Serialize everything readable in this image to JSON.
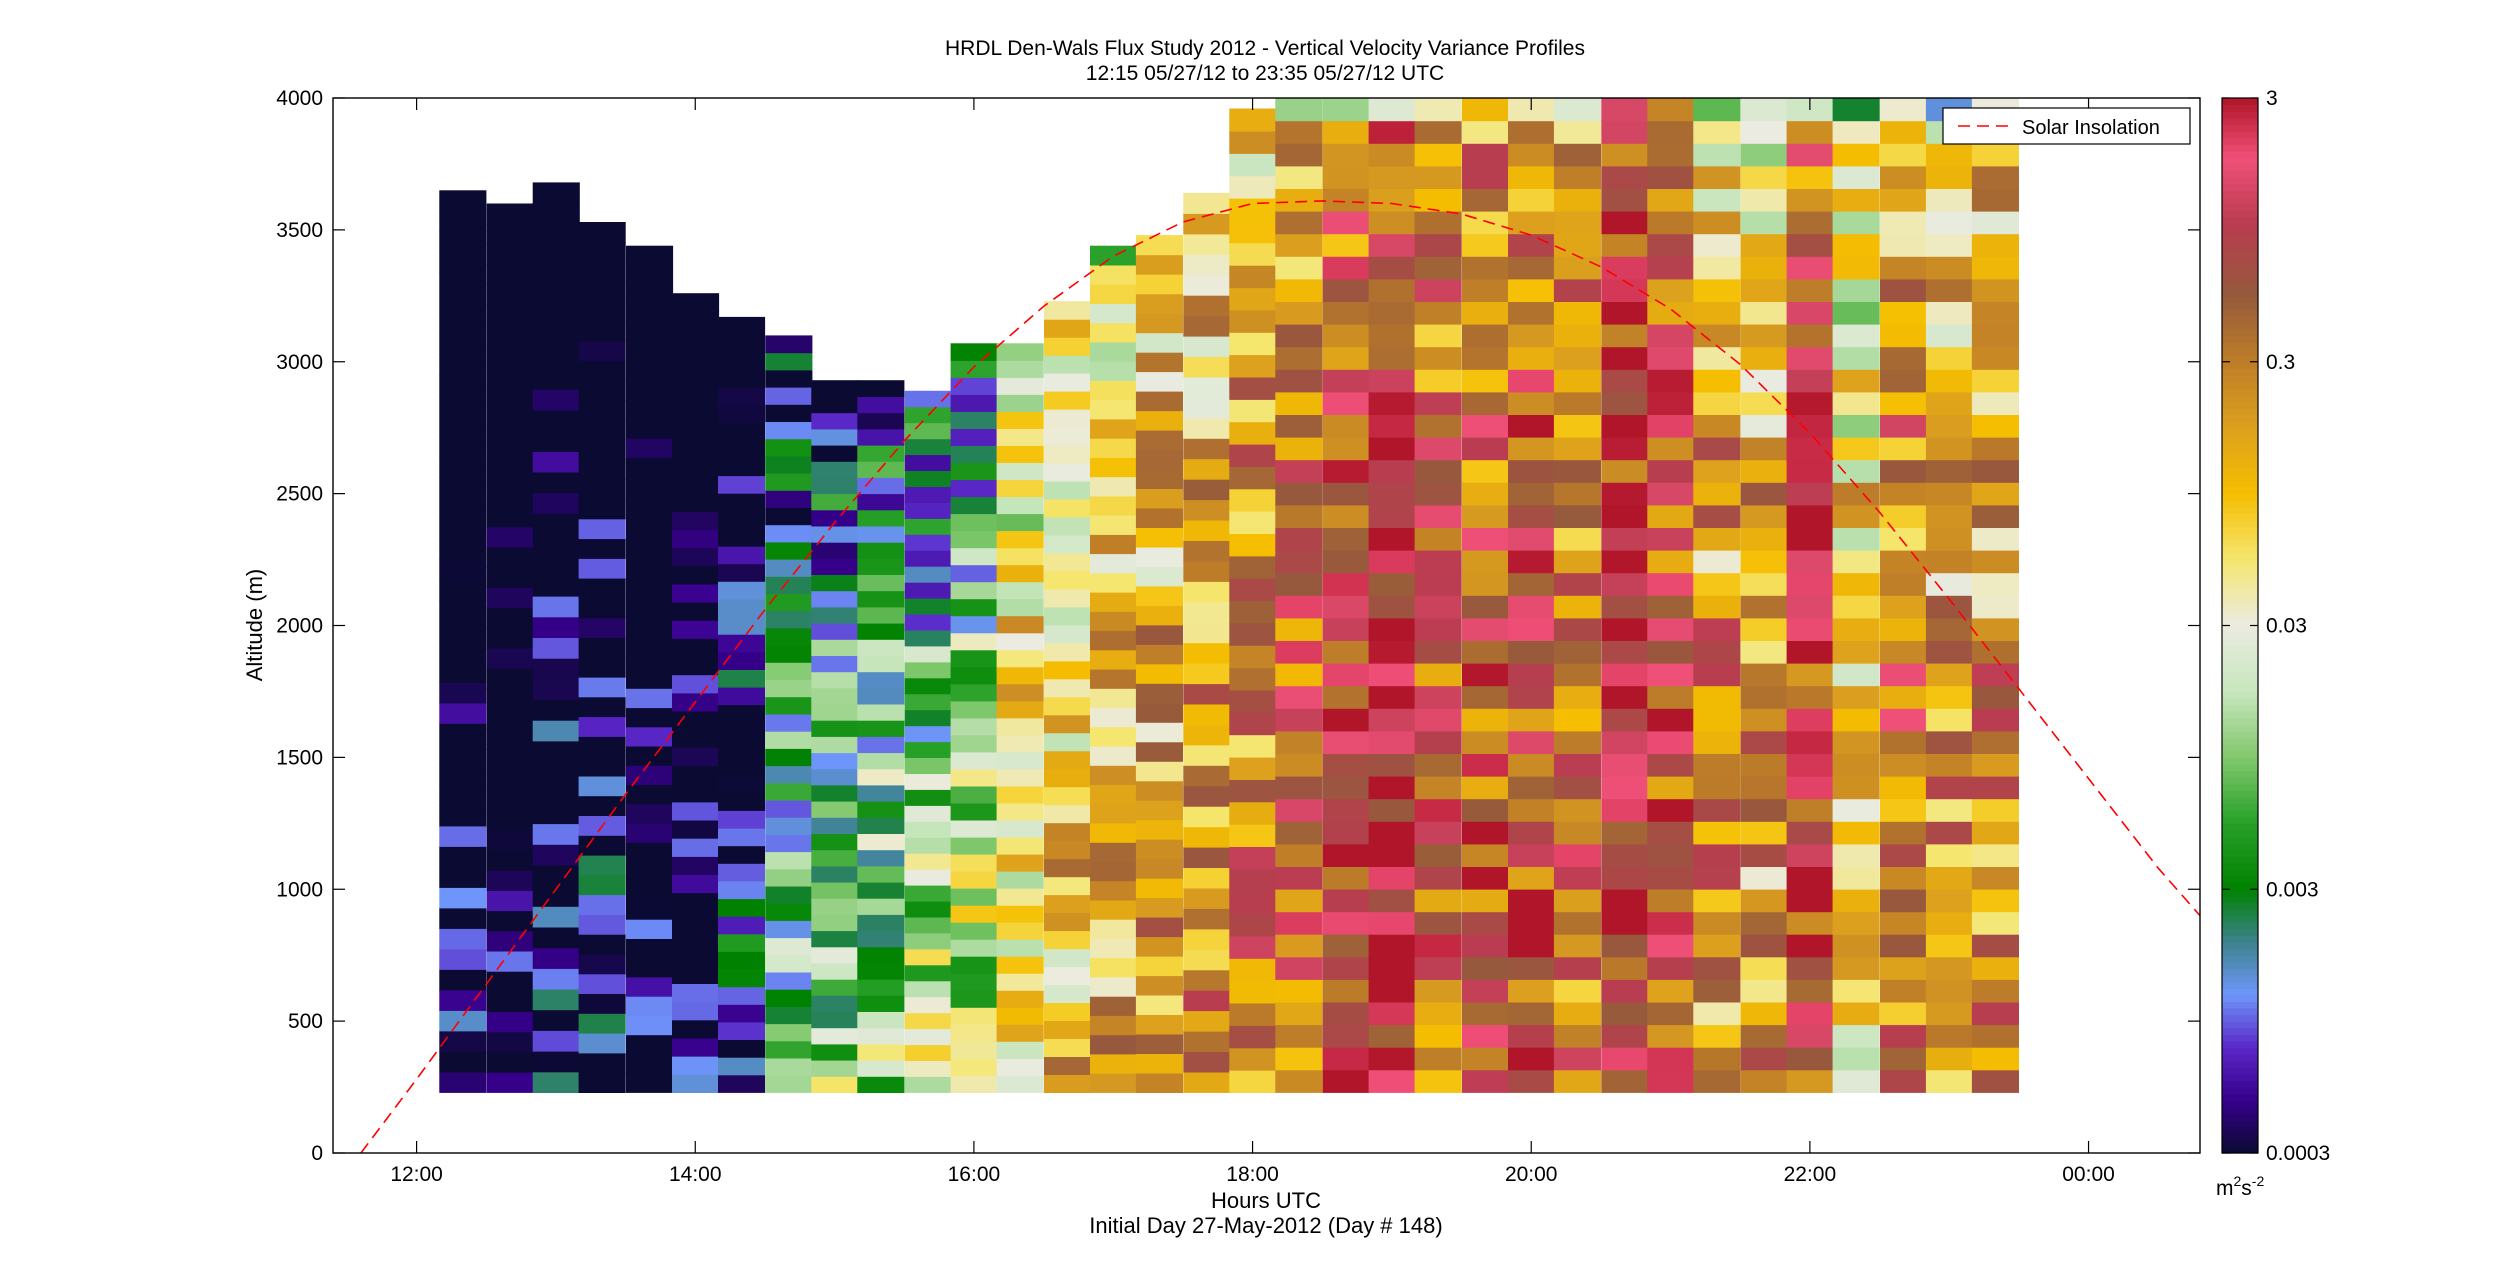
{
  "chart_data": {
    "type": "heatmap",
    "title": "HRDL Den-Wals Flux Study 2012 - Vertical Velocity Variance Profiles",
    "subtitle": "12:15 05/27/12 to 23:35 05/27/12  UTC",
    "xlabel": "Hours UTC",
    "xlabel2": "Initial Day 27-May-2012 (Day # 148)",
    "ylabel": "Altitude (m)",
    "xlim": [
      11.4,
      24.8
    ],
    "ylim": [
      0,
      4000
    ],
    "x_ticks": [
      12,
      14,
      16,
      18,
      20,
      22,
      24
    ],
    "x_tick_labels": [
      "12:00",
      "14:00",
      "16:00",
      "18:00",
      "20:00",
      "22:00",
      "00:00"
    ],
    "y_ticks": [
      0,
      500,
      1000,
      1500,
      2000,
      2500,
      3000,
      3500,
      4000
    ],
    "y_tick_labels": [
      "0",
      "500",
      "1000",
      "1500",
      "2000",
      "2500",
      "3000",
      "3500",
      "4000"
    ],
    "colorbar": {
      "scale": "log",
      "range": [
        0.0003,
        3
      ],
      "ticks": [
        0.0003,
        0.003,
        0.03,
        0.3,
        3
      ],
      "tick_labels": [
        "0.0003",
        "0.003",
        "0.03",
        "0.3",
        "3"
      ],
      "unit_base": "m",
      "unit_sup1": "2",
      "unit_mid": "s",
      "unit_sup2": "-2"
    },
    "legend": {
      "label": "Solar Insolation",
      "placement": "top-right",
      "color": "#ff0000",
      "style": "dashed"
    },
    "profile_bottom_m": 230,
    "profiles": [
      {
        "t": 12.33,
        "top": 3650,
        "level": -0.5
      },
      {
        "t": 12.67,
        "top": 3600,
        "level": -0.4
      },
      {
        "t": 13.0,
        "top": 3680,
        "level": -0.2
      },
      {
        "t": 13.33,
        "top": 3530,
        "level": -0.1
      },
      {
        "t": 13.67,
        "top": 3440,
        "level": -0.3
      },
      {
        "t": 14.0,
        "top": 3260,
        "level": -0.3
      },
      {
        "t": 14.33,
        "top": 3170,
        "level": 0.1
      },
      {
        "t": 14.67,
        "top": 3100,
        "level": 0.7
      },
      {
        "t": 15.0,
        "top": 2930,
        "level": 0.9
      },
      {
        "t": 15.33,
        "top": 2930,
        "level": 1.0
      },
      {
        "t": 15.67,
        "top": 2890,
        "level": 1.1
      },
      {
        "t": 16.0,
        "top": 3070,
        "level": 1.2
      },
      {
        "t": 16.33,
        "top": 3070,
        "level": 1.6
      },
      {
        "t": 16.67,
        "top": 3230,
        "level": 1.7
      },
      {
        "t": 17.0,
        "top": 3440,
        "level": 1.9
      },
      {
        "t": 17.33,
        "top": 3480,
        "level": 1.9
      },
      {
        "t": 17.67,
        "top": 3640,
        "level": 2.0
      },
      {
        "t": 18.0,
        "top": 3960,
        "level": 2.1
      },
      {
        "t": 18.33,
        "top": 4000,
        "level": 2.3
      },
      {
        "t": 18.67,
        "top": 4000,
        "level": 2.5
      },
      {
        "t": 19.0,
        "top": 4000,
        "level": 2.9
      },
      {
        "t": 19.33,
        "top": 4000,
        "level": 2.3
      },
      {
        "t": 19.67,
        "top": 4000,
        "level": 2.4
      },
      {
        "t": 20.0,
        "top": 4000,
        "level": 2.5
      },
      {
        "t": 20.33,
        "top": 4000,
        "level": 2.2
      },
      {
        "t": 20.67,
        "top": 4000,
        "level": 2.8
      },
      {
        "t": 21.0,
        "top": 4000,
        "level": 2.5
      },
      {
        "t": 21.33,
        "top": 4000,
        "level": 2.0
      },
      {
        "t": 21.67,
        "top": 4000,
        "level": 1.9
      },
      {
        "t": 22.0,
        "top": 4000,
        "level": 2.6
      },
      {
        "t": 22.33,
        "top": 4000,
        "level": 1.6
      },
      {
        "t": 22.67,
        "top": 4000,
        "level": 2.2
      },
      {
        "t": 23.0,
        "top": 4000,
        "level": 1.9
      },
      {
        "t": 23.33,
        "top": 4000,
        "level": 2.0
      }
    ],
    "solar_insolation_scaled_m": {
      "x": [
        11.6,
        12.0,
        12.5,
        13.0,
        13.5,
        14.0,
        14.5,
        15.0,
        15.5,
        16.0,
        16.5,
        17.0,
        17.5,
        18.0,
        18.5,
        19.0,
        19.5,
        20.0,
        20.5,
        21.0,
        21.5,
        22.0,
        22.5,
        23.0,
        23.5,
        24.0,
        24.5,
        24.8
      ],
      "y": [
        0,
        280,
        640,
        1000,
        1360,
        1710,
        2060,
        2390,
        2700,
        2980,
        3210,
        3400,
        3530,
        3600,
        3610,
        3600,
        3560,
        3480,
        3360,
        3200,
        2990,
        2730,
        2430,
        2100,
        1760,
        1420,
        1080,
        900
      ]
    }
  }
}
